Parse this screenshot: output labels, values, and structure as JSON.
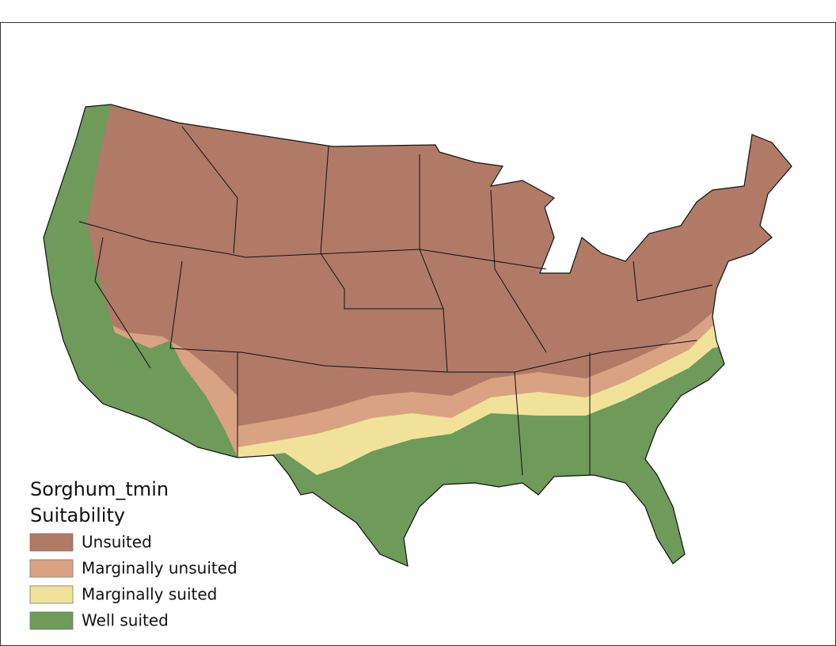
{
  "legend": {
    "title": "Sorghum_tmin",
    "subtitle": "Suitability",
    "items": [
      {
        "label": "Unsuited",
        "color": "#b07a66"
      },
      {
        "label": "Marginally unsuited",
        "color": "#d9a283"
      },
      {
        "label": "Marginally suited",
        "color": "#f1e29a"
      },
      {
        "label": "Well suited",
        "color": "#6e9a5a"
      }
    ]
  }
}
